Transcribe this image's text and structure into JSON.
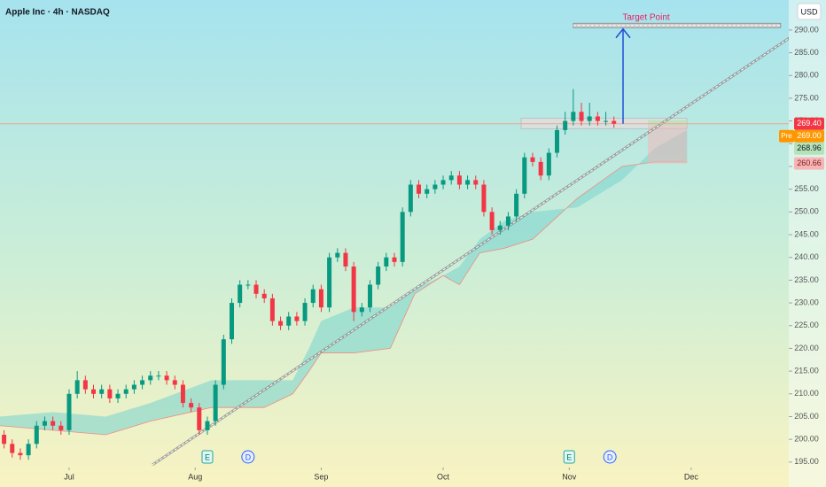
{
  "chart_data": {
    "type": "candlestick",
    "title": "Apple Inc · 4h · NASDAQ",
    "currency": "USD",
    "annotation": "Target Point",
    "up_color": "#089981",
    "down_color": "#f23645",
    "xlim": [
      165,
      359
    ],
    "ylim": [
      193.8,
      296.6
    ],
    "xticks": [
      {
        "value": 182,
        "label": "Jul"
      },
      {
        "value": 213,
        "label": "Aug"
      },
      {
        "value": 244,
        "label": "Sep"
      },
      {
        "value": 274,
        "label": "Oct"
      },
      {
        "value": 305,
        "label": "Nov"
      },
      {
        "value": 335,
        "label": "Dec"
      }
    ],
    "yticks": [
      {
        "value": 195,
        "label": "195.00"
      },
      {
        "value": 200,
        "label": "200.00"
      },
      {
        "value": 205,
        "label": "205.00"
      },
      {
        "value": 210,
        "label": "210.00"
      },
      {
        "value": 215,
        "label": "215.00"
      },
      {
        "value": 220,
        "label": "220.00"
      },
      {
        "value": 225,
        "label": "225.00"
      },
      {
        "value": 230,
        "label": "230.00"
      },
      {
        "value": 235,
        "label": "235.00"
      },
      {
        "value": 240,
        "label": "240.00"
      },
      {
        "value": 245,
        "label": "245.00"
      },
      {
        "value": 250,
        "label": "250.00"
      },
      {
        "value": 255,
        "label": "255.00"
      },
      {
        "value": 260,
        "label": "260.00"
      },
      {
        "value": 265,
        "label": "265.00"
      },
      {
        "value": 270,
        "label": "270.00"
      },
      {
        "value": 275,
        "label": "275.00"
      },
      {
        "value": 280,
        "label": "280.00"
      },
      {
        "value": 285,
        "label": "285.00"
      },
      {
        "value": 290,
        "label": "290.00"
      }
    ],
    "x": [
      166,
      168,
      170,
      172,
      174,
      176,
      178,
      180,
      182,
      184,
      186,
      188,
      190,
      192,
      194,
      196,
      198,
      200,
      202,
      204,
      206,
      208,
      210,
      212,
      214,
      216,
      218,
      220,
      222,
      224,
      226,
      228,
      230,
      232,
      234,
      236,
      238,
      240,
      242,
      244,
      246,
      248,
      250,
      252,
      254,
      256,
      258,
      260,
      262,
      264,
      266,
      268,
      270,
      272,
      274,
      276,
      278,
      280,
      282,
      284,
      286,
      288,
      290,
      292,
      294,
      296,
      298,
      300,
      302,
      304,
      306,
      308,
      310,
      312,
      314,
      316
    ],
    "open": [
      201,
      199,
      197,
      196.5,
      199,
      203,
      204,
      203,
      202,
      210,
      213,
      211,
      210,
      211,
      209,
      210,
      211,
      212,
      213,
      214,
      214,
      213,
      212,
      208,
      207,
      202,
      204,
      212,
      222,
      230,
      234,
      234,
      232,
      231,
      226,
      225,
      227,
      226,
      230,
      233,
      229,
      240,
      241,
      238,
      228,
      229,
      234,
      238,
      240,
      239,
      250,
      256,
      254,
      255,
      256,
      257,
      258,
      256,
      257,
      256,
      250,
      246,
      247,
      249,
      254,
      262,
      261,
      258,
      263,
      268,
      270,
      272,
      270,
      271,
      270,
      270
    ],
    "high": [
      202,
      200,
      198,
      200,
      204,
      205,
      205,
      204,
      211,
      215,
      214,
      212,
      212,
      212,
      211,
      212,
      213,
      214,
      215,
      215,
      215,
      214,
      213,
      209,
      208,
      205,
      213,
      223,
      231,
      235,
      235,
      235,
      233,
      232,
      227,
      228,
      228,
      231,
      234,
      234,
      241,
      242,
      242,
      239,
      230,
      235,
      239,
      241,
      241,
      251,
      257,
      257,
      256,
      257,
      258,
      259,
      259,
      258,
      258,
      257,
      251,
      248,
      250,
      255,
      263,
      263,
      262,
      264,
      269,
      272,
      277,
      274,
      274,
      272,
      272,
      271
    ],
    "low": [
      198,
      196,
      195.5,
      195.5,
      198,
      202,
      202,
      201,
      201,
      209,
      210,
      209,
      209,
      208,
      208,
      209,
      210,
      211,
      212,
      213,
      212,
      211,
      207,
      206,
      201,
      201,
      203,
      211,
      221,
      229,
      233,
      231,
      230,
      225,
      224,
      224,
      225,
      225,
      229,
      228,
      228,
      239,
      237,
      226,
      227,
      228,
      233,
      237,
      238,
      238,
      249,
      253,
      253,
      254,
      255,
      256,
      255,
      255,
      255,
      249,
      245,
      245,
      246,
      248,
      253,
      260,
      257,
      257,
      262,
      267,
      269,
      269,
      269,
      269,
      269,
      268.5
    ],
    "close": [
      199,
      197,
      196.5,
      199,
      203,
      204,
      203,
      202,
      210,
      213,
      211,
      210,
      211,
      209,
      210,
      211,
      212,
      213,
      214,
      214,
      213,
      212,
      208,
      207,
      202,
      204,
      212,
      222,
      230,
      234,
      234,
      232,
      231,
      226,
      225,
      227,
      226,
      230,
      233,
      229,
      240,
      241,
      238,
      228,
      229,
      234,
      238,
      240,
      239,
      250,
      256,
      254,
      255,
      256,
      257,
      258,
      256,
      257,
      256,
      250,
      246,
      247,
      249,
      254,
      262,
      261,
      258,
      263,
      268,
      270,
      272,
      270,
      271,
      270,
      270,
      269.4
    ],
    "cloud": {
      "color": "#7fd6cf",
      "x": [
        165,
        178,
        191,
        202,
        217,
        230,
        237,
        241,
        244,
        252,
        261,
        267,
        274,
        278,
        283,
        289,
        296,
        307,
        318,
        326,
        334
      ],
      "span_a": [
        205,
        206,
        205,
        208,
        213,
        213,
        213,
        220,
        226,
        229,
        229,
        233,
        236,
        238,
        244,
        248,
        250,
        251,
        257,
        264,
        268
      ],
      "span_b": [
        203,
        202,
        201,
        204,
        207,
        207,
        210,
        215,
        219,
        219,
        220,
        232,
        236,
        234,
        241,
        242,
        244,
        253,
        260,
        261,
        261
      ]
    },
    "target": {
      "value": 291,
      "x": [
        306,
        357
      ]
    },
    "events": [
      {
        "x": 216,
        "label": "E"
      },
      {
        "x": 226,
        "label": "D"
      },
      {
        "x": 305,
        "label": "E"
      },
      {
        "x": 315,
        "label": "D"
      }
    ],
    "price_labels": [
      {
        "value": 269.4,
        "label": "269.40",
        "color": "#f23645",
        "text_color": "#ffffff"
      },
      {
        "value": 269.0,
        "label": "269.00",
        "tag": "Pre",
        "color": "#ff9800",
        "text_color": "#ffffff"
      },
      {
        "value": 268.96,
        "label": "268.96",
        "color": "#b5e3b8",
        "text_color": "#131722"
      },
      {
        "value": 260.66,
        "label": "260.66",
        "color": "#f8b4b4",
        "text_color": "#7a1a1a"
      }
    ]
  }
}
